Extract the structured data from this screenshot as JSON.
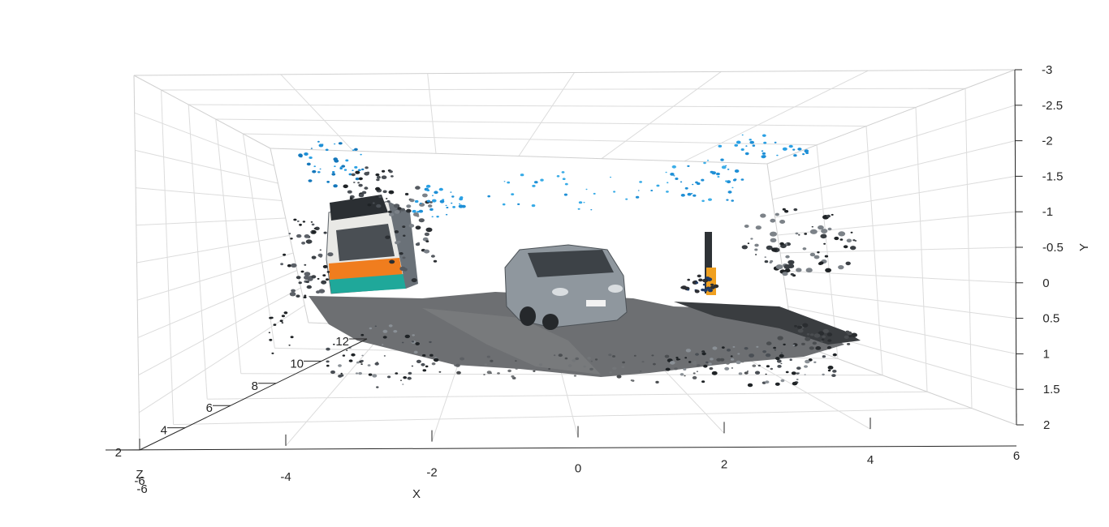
{
  "chart_data": {
    "type": "scatter",
    "projection": "3d",
    "title": "",
    "xlabel": "X",
    "ylabel": "Y",
    "zlabel": "Z",
    "xlim": [
      -6,
      6
    ],
    "ylim": [
      -3,
      2
    ],
    "zlim": [
      2,
      12
    ],
    "y_reversed": true,
    "grid": true,
    "x_ticks": [
      "-6",
      "-4",
      "-2",
      "0",
      "2",
      "4",
      "6"
    ],
    "y_ticks": [
      "-3",
      "-2.5",
      "-2",
      "-1.5",
      "-1",
      "-0.5",
      "0",
      "0.5",
      "1",
      "1.5",
      "2"
    ],
    "z_ticks": [
      "2",
      "4",
      "6",
      "8",
      "10",
      "12"
    ],
    "scene_objects": [
      "bus",
      "car",
      "road surface",
      "traffic light",
      "sky points"
    ],
    "colors": {
      "bus_body": "#e9e9e6",
      "bus_orange": "#f07d1e",
      "bus_teal": "#1fa89a",
      "car": "#8f979e",
      "road": "#6d6f72",
      "sky": "#1e8fd6",
      "dark": "#1f2326",
      "pole": "#f0a020"
    }
  }
}
